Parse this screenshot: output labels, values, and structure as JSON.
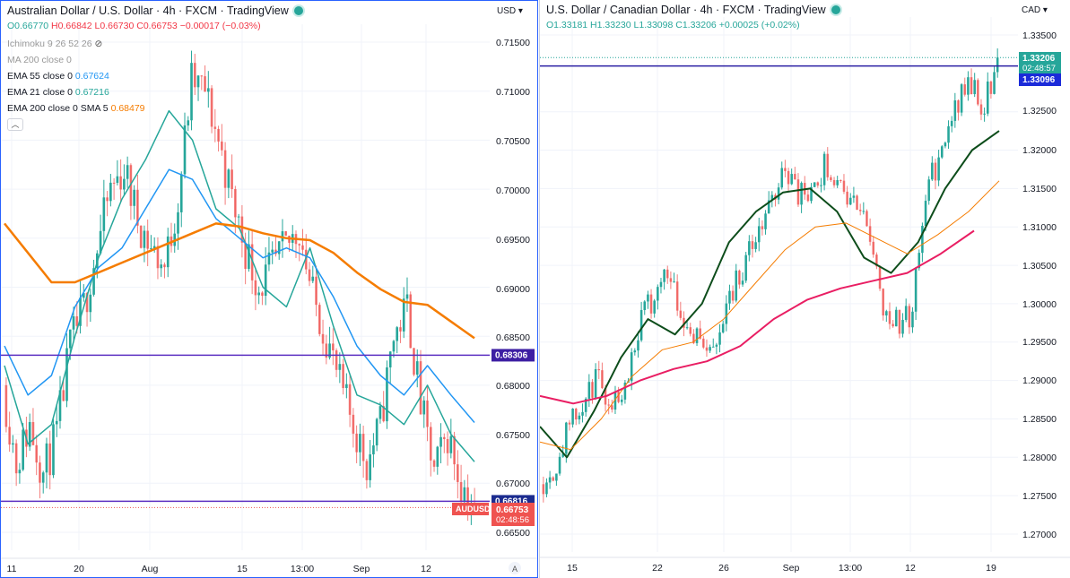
{
  "left": {
    "title": "Australian Dollar / U.S. Dollar · 4h · FXCM · TradingView",
    "ohlc": {
      "o": "O0.66770",
      "h": "H0.66842",
      "l": "L0.66730",
      "c": "C0.66753",
      "chg": "−0.00017 (−0.03%)"
    },
    "indicators": [
      {
        "label": "Ichimoku 9 26 52 26",
        "value": "",
        "color": "#999999"
      },
      {
        "label": "MA 200 close 0",
        "value": "",
        "color": "#999999"
      },
      {
        "label": "EMA 55 close 0",
        "value": "0.67624",
        "color": "#2196f3"
      },
      {
        "label": "EMA 21 close 0",
        "value": "0.67216",
        "color": "#26a69a"
      },
      {
        "label": "EMA 200 close 0 SMA 5",
        "value": "0.68479",
        "color": "#f57c00"
      }
    ],
    "currency": "USD",
    "time_labels": [
      "11",
      "20",
      "Aug",
      "15",
      "13:00",
      "Sep",
      "12"
    ],
    "price_labels": [
      "0.71500",
      "0.71000",
      "0.70500",
      "0.70000",
      "0.69500",
      "0.69000",
      "0.68500",
      "0.68000",
      "0.67500",
      "0.67000",
      "0.66500"
    ],
    "tags": {
      "line1": "0.68306",
      "line2": "0.66816",
      "symbol": "AUDUSD",
      "last": "0.66753",
      "countdown": "02:48:56"
    }
  },
  "right": {
    "title": "U.S. Dollar / Canadian Dollar · 4h · FXCM · TradingView",
    "ohlc": {
      "o": "O1.33181",
      "h": "H1.33230",
      "l": "L1.33098",
      "c": "C1.33206",
      "chg": "+0.00025 (+0.02%)"
    },
    "currency": "CAD",
    "time_labels": [
      "15",
      "22",
      "26",
      "Sep",
      "13:00",
      "12",
      "19"
    ],
    "price_labels": [
      "1.33500",
      "1.32500",
      "1.32000",
      "1.31500",
      "1.31000",
      "1.30500",
      "1.30000",
      "1.29500",
      "1.29000",
      "1.28500",
      "1.28000",
      "1.27500",
      "1.27000"
    ],
    "tags": {
      "last": "1.33206",
      "countdown": "02:48:57",
      "line1": "1.33096"
    }
  },
  "chart_data": [
    {
      "type": "candlestick",
      "title": "Australian Dollar / U.S. Dollar · 4h · FXCM",
      "ylabel": "USD",
      "ylim": [
        0.663,
        0.7175
      ],
      "x_ticks": [
        "11",
        "20",
        "Aug",
        "15",
        "13:00",
        "Sep",
        "12"
      ],
      "close_path": [
        0.68,
        0.672,
        0.676,
        0.671,
        0.675,
        0.684,
        0.688,
        0.694,
        0.7,
        0.702,
        0.697,
        0.694,
        0.692,
        0.699,
        0.711,
        0.71,
        0.705,
        0.699,
        0.694,
        0.69,
        0.692,
        0.694,
        0.696,
        0.689,
        0.685,
        0.68,
        0.676,
        0.672,
        0.676,
        0.685,
        0.688,
        0.678,
        0.671,
        0.675,
        0.67,
        0.6675
      ],
      "series": [
        {
          "name": "EMA 21",
          "color": "#26a69a",
          "values": [
            0.682,
            0.674,
            0.676,
            0.685,
            0.693,
            0.699,
            0.703,
            0.708,
            0.705,
            0.698,
            0.696,
            0.69,
            0.688,
            0.694,
            0.686,
            0.679,
            0.678,
            0.676,
            0.68,
            0.675,
            0.6722
          ]
        },
        {
          "name": "EMA 55",
          "color": "#2196f3",
          "values": [
            0.684,
            0.679,
            0.681,
            0.688,
            0.692,
            0.694,
            0.698,
            0.702,
            0.701,
            0.697,
            0.695,
            0.693,
            0.694,
            0.693,
            0.689,
            0.684,
            0.681,
            0.679,
            0.682,
            0.679,
            0.6762
          ]
        },
        {
          "name": "EMA 200 SMA 5",
          "color": "#f57c00",
          "values": [
            0.6965,
            0.6935,
            0.6905,
            0.6905,
            0.6915,
            0.6925,
            0.6935,
            0.6945,
            0.6955,
            0.6965,
            0.6962,
            0.6955,
            0.695,
            0.6948,
            0.6935,
            0.6915,
            0.6898,
            0.6885,
            0.6882,
            0.6865,
            0.6848
          ]
        }
      ],
      "horizontal_lines": [
        0.68306,
        0.66816
      ],
      "last_price": 0.66753
    },
    {
      "type": "candlestick",
      "title": "U.S. Dollar / Canadian Dollar · 4h · FXCM",
      "ylabel": "CAD",
      "ylim": [
        1.2655,
        1.3395
      ],
      "x_ticks": [
        "15",
        "22",
        "26",
        "Sep",
        "13:00",
        "12",
        "19"
      ],
      "close_path": [
        1.2765,
        1.2785,
        1.284,
        1.2865,
        1.2905,
        1.287,
        1.29,
        1.298,
        1.301,
        1.305,
        1.298,
        1.296,
        1.293,
        1.3,
        1.304,
        1.308,
        1.312,
        1.318,
        1.3145,
        1.3135,
        1.3185,
        1.315,
        1.313,
        1.31,
        1.3,
        1.2975,
        1.2985,
        1.315,
        1.319,
        1.325,
        1.329,
        1.3255,
        1.332
      ],
      "series": [
        {
          "name": "EMA 21",
          "color": "#0d4d1b",
          "values": [
            1.284,
            1.28,
            1.286,
            1.293,
            1.298,
            1.296,
            1.3,
            1.308,
            1.312,
            1.3145,
            1.315,
            1.312,
            1.306,
            1.304,
            1.308,
            1.315,
            1.32,
            1.3225
          ]
        },
        {
          "name": "EMA 55",
          "color": "#f57c00",
          "values": [
            1.282,
            1.281,
            1.285,
            1.2905,
            1.294,
            1.295,
            1.298,
            1.3025,
            1.307,
            1.31,
            1.3105,
            1.3085,
            1.3065,
            1.309,
            1.312,
            1.316
          ]
        },
        {
          "name": "EMA 200",
          "color": "#e91e63",
          "values": [
            1.288,
            1.287,
            1.288,
            1.29,
            1.2915,
            1.2925,
            1.2945,
            1.298,
            1.3005,
            1.302,
            1.303,
            1.304,
            1.3065,
            1.3095
          ]
        }
      ],
      "horizontal_lines": [
        1.33096
      ],
      "last_price": 1.33206
    }
  ]
}
